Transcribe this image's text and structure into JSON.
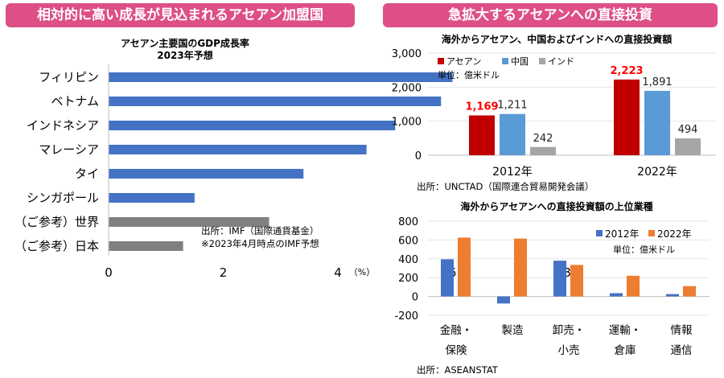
{
  "headers": {
    "left": "相対的に高い成長が見込まれるアセアン加盟国",
    "right": "急拡大するアセアンへの直接投資"
  },
  "chart_data": [
    {
      "type": "bar",
      "orientation": "horizontal",
      "title": "アセアン主要国のGDP成長率",
      "subtitle": "2023年予想",
      "categories": [
        "フィリピン",
        "ベトナム",
        "インドネシア",
        "マレーシア",
        "タイ",
        "シンガポール",
        "（ご参考）世界",
        "（ご参考）日本"
      ],
      "values": [
        6.0,
        5.8,
        5.0,
        4.5,
        3.4,
        1.5,
        2.8,
        1.3
      ],
      "bar_colors": [
        "#4472c4",
        "#4472c4",
        "#4472c4",
        "#4472c4",
        "#4472c4",
        "#4472c4",
        "#808080",
        "#808080"
      ],
      "xlim": [
        0,
        8
      ],
      "xticks": [
        "0",
        "2",
        "4",
        "6",
        "8"
      ],
      "xunit": "（%）",
      "grid": false,
      "notes": [
        "出所：IMF（国際通貨基金）",
        "※2023年4月時点のIMF予想"
      ]
    },
    {
      "type": "bar",
      "title": "海外からアセアン、中国およびインドへの直接投資額",
      "categories": [
        "2012年",
        "2022年"
      ],
      "series": [
        {
          "name": "アセアン",
          "values": [
            1169,
            2223
          ],
          "color": "#c00000"
        },
        {
          "name": "中国",
          "values": [
            1211,
            1891
          ],
          "color": "#5b9bd5"
        },
        {
          "name": "インド",
          "values": [
            242,
            494
          ],
          "color": "#a5a5a5"
        }
      ],
      "data_labels": [
        [
          "1,169",
          "1,211",
          "242"
        ],
        [
          "2,223",
          "1,891",
          "494"
        ]
      ],
      "label_colors": [
        "#ff0000",
        "#222222",
        "#222222"
      ],
      "ylim": [
        0,
        3000
      ],
      "yticks": [
        "0",
        "1,000",
        "2,000",
        "3,000"
      ],
      "unit": "単位：億米ドル",
      "legend": "top-left",
      "grid": true,
      "source": "出所：UNCTAD（国際連合貿易開発会議）"
    },
    {
      "type": "bar",
      "title": "海外からアセアンへの直接投資額の上位業種",
      "categories": [
        [
          "金融・",
          "保険"
        ],
        [
          "製造",
          ""
        ],
        [
          "卸売・",
          "小売"
        ],
        [
          "運輸・",
          "倉庫"
        ],
        [
          "情報",
          "通信"
        ]
      ],
      "series": [
        {
          "name": "2012年",
          "values": [
            395,
            -75,
            380,
            35,
            25
          ],
          "color": "#4472c4"
        },
        {
          "name": "2022年",
          "values": [
            625,
            615,
            335,
            220,
            110
          ],
          "color": "#ed7d31"
        }
      ],
      "ylim": [
        -200,
        800
      ],
      "yticks": [
        "-200",
        "0",
        "200",
        "400",
        "600",
        "800"
      ],
      "unit": "単位：億米ドル",
      "legend": "top-right",
      "grid": true,
      "source": "出所：ASEANSTAT"
    }
  ]
}
